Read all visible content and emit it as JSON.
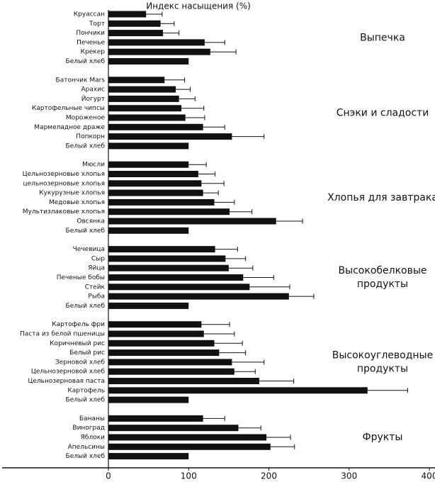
{
  "chart_data": {
    "type": "bar",
    "orientation": "horizontal",
    "color": "#111111",
    "xlabel": "Индекс насыщения (%)",
    "xlim": [
      0,
      400
    ],
    "xticks": [
      0,
      100,
      200,
      300,
      400
    ],
    "groups": [
      {
        "name": [
          "Выпечка"
        ],
        "categories": [
          "Круассан",
          "Торт",
          "Пончики",
          "Печенье",
          "Крекер",
          "Белый хлеб"
        ],
        "values": [
          47,
          65,
          68,
          120,
          127,
          100
        ],
        "errors": [
          20,
          17,
          20,
          25,
          32,
          null
        ]
      },
      {
        "name": [
          "Снэки и сладости"
        ],
        "categories": [
          "Батончик Mars",
          "Арахис",
          "Йогурт",
          "Картофельные чипсы",
          "Мороженое",
          "Мармеладное драже",
          "Попкорн",
          "Белый хлеб"
        ],
        "values": [
          70,
          84,
          88,
          91,
          96,
          118,
          154,
          100
        ],
        "errors": [
          25,
          18,
          20,
          28,
          24,
          27,
          40,
          null
        ]
      },
      {
        "name": [
          "Хлопья для завтрака"
        ],
        "categories": [
          "Мюсли",
          "Цельнозерновые хлопья",
          "цельнозерновые хлопья",
          "Кукурузные хлопья",
          "Медовые хлопья",
          "Мультизлаковые хлопья",
          "Овсянка",
          "Белый хлеб"
        ],
        "values": [
          100,
          112,
          116,
          118,
          132,
          151,
          209,
          100
        ],
        "errors": [
          22,
          21,
          28,
          19,
          25,
          28,
          33,
          null
        ]
      },
      {
        "name": [
          "Высокобелковые",
          "продукты"
        ],
        "categories": [
          "Чечевица",
          "Сыр",
          "Яйца",
          "Печеные бобы",
          "Стейк",
          "Рыба",
          "Белый хлеб"
        ],
        "values": [
          133,
          146,
          150,
          168,
          176,
          225,
          100
        ],
        "errors": [
          28,
          25,
          30,
          38,
          50,
          31,
          null
        ]
      },
      {
        "name": [
          "Высокоуглеводные",
          "продукты"
        ],
        "categories": [
          "Картофель фри",
          "Паста из белой пшеницы",
          "Коричневый рис",
          "Белый рис",
          "Зерновой хлеб",
          "Цельнозерновой хлеб",
          "Цельнозерновая паста",
          "Картофель",
          "Белый хлеб"
        ],
        "values": [
          116,
          119,
          132,
          138,
          154,
          157,
          188,
          323,
          100
        ],
        "errors": [
          35,
          38,
          35,
          33,
          40,
          26,
          43,
          50,
          null
        ]
      },
      {
        "name": [
          "Фрукты"
        ],
        "categories": [
          "Бананы",
          "Виноград",
          "Яблоки",
          "Апельсины",
          "Белый хлеб"
        ],
        "values": [
          118,
          162,
          197,
          202,
          100
        ],
        "errors": [
          27,
          28,
          30,
          30,
          null
        ]
      }
    ]
  }
}
